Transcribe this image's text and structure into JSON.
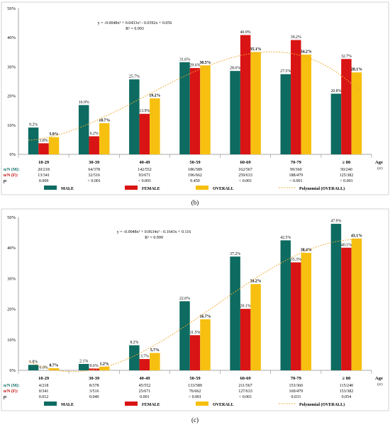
{
  "panels": [
    {
      "caption": "(b)",
      "equation": "y = -0.0048x³ + 0.0433x² - 0.0392x + 0.056",
      "r2": "R² = 0.993",
      "age_label": "Age",
      "age_unit": "(yr)",
      "row_labels": [
        "n/N (M):",
        "n/N (F):",
        "p:"
      ],
      "rows": [
        [
          "20/218",
          "64/378",
          "142/552",
          "186/589",
          "162/567",
          "99/360",
          "50/240"
        ],
        [
          "13/341",
          "32/516",
          "93/671",
          "196/662",
          "259/633",
          "188/479",
          "125/382"
        ],
        [
          "0.009",
          "< 0.001",
          "< 0.001",
          "0.450",
          "< 0.001",
          "< 0.001",
          "< 0.001"
        ]
      ],
      "legend": {
        "male": "MALE",
        "female": "FEMALE",
        "overall": "OVERALL",
        "trend": "Polynomial (OVERALL)"
      }
    },
    {
      "caption": "(c)",
      "equation": "y = -0.0048x³ + 0.0634x² - 0.1643x + 0.116",
      "r2": "R² = 0.999",
      "age_label": "Age",
      "age_unit": "(yr)",
      "row_labels": [
        "n/N (M):",
        "n/N (F):",
        "p:"
      ],
      "rows": [
        [
          "4/218",
          "8/378",
          "45/552",
          "133/589",
          "211/567",
          "153/360",
          "115/240"
        ],
        [
          "0/341",
          "3/516",
          "25/671",
          "76/662",
          "127/633",
          "169/479",
          "153/382"
        ],
        [
          "0.012",
          "0.040",
          "0.001",
          "< 0.001",
          "< 0.001",
          "0.033",
          "0.054"
        ]
      ],
      "legend": {
        "male": "MALE",
        "female": "FEMALE",
        "overall": "OVERALL",
        "trend": "Polynomial (OVERALL)"
      }
    }
  ],
  "colors": {
    "male": "#0d6b61",
    "female": "#d91414",
    "overall": "#f7bf0f",
    "trend": "#f0a830",
    "axis": "#8c8c8c",
    "label_red": "#c00000"
  },
  "chart_data": [
    {
      "type": "bar",
      "categories": [
        "18-29",
        "30-39",
        "40-49",
        "50-59",
        "60-69",
        "70-79",
        "≥ 80"
      ],
      "series": [
        {
          "name": "MALE",
          "values": [
            9.2,
            16.9,
            25.7,
            31.6,
            28.6,
            27.5,
            20.8
          ]
        },
        {
          "name": "FEMALE",
          "values": [
            3.8,
            6.2,
            13.9,
            29.6,
            40.9,
            39.2,
            32.7
          ]
        },
        {
          "name": "OVERALL",
          "values": [
            5.9,
            10.7,
            19.2,
            30.5,
            35.1,
            34.2,
            28.1
          ]
        }
      ],
      "value_labels": [
        [
          "9.2%",
          "16.9%",
          "25.7%",
          "31.6%",
          "28.6%",
          "27.5%",
          "20.8%"
        ],
        [
          "3.8%",
          "6.2%",
          "13.9%",
          "29.6%",
          "40.9%",
          "39.2%",
          "32.7%"
        ],
        [
          "5.9%",
          "10.7%",
          "19.2%",
          "30.5%",
          "35.1%",
          "34.2%",
          "28.1%"
        ]
      ],
      "trendline": {
        "name": "Polynomial (OVERALL)",
        "coefficients": [
          -0.0048,
          0.0433,
          -0.0392,
          0.056
        ]
      },
      "yticks": [
        "0%",
        "10%",
        "20%",
        "30%",
        "40%",
        "50%"
      ],
      "ylim": [
        0,
        50
      ],
      "xlabel": "Age",
      "grid": false,
      "legend": "bottom"
    },
    {
      "type": "bar",
      "categories": [
        "18-29",
        "30-39",
        "40-49",
        "50-59",
        "60-69",
        "70-79",
        "≥ 80"
      ],
      "series": [
        {
          "name": "MALE",
          "values": [
            1.8,
            2.1,
            8.2,
            22.6,
            37.2,
            42.5,
            47.9
          ]
        },
        {
          "name": "FEMALE",
          "values": [
            0.0,
            0.6,
            3.7,
            11.5,
            20.1,
            35.3,
            40.1
          ]
        },
        {
          "name": "OVERALL",
          "values": [
            0.7,
            1.2,
            5.7,
            16.7,
            28.2,
            38.4,
            43.1
          ]
        }
      ],
      "value_labels": [
        [
          "1.8%",
          "2.1%",
          "8.2%",
          "22.6%",
          "37.2%",
          "42.5%",
          "47.9%"
        ],
        [
          "0.0%",
          "0.6%",
          "3.7%",
          "11.5%",
          "20.1%",
          "35.3%",
          "40.1%"
        ],
        [
          "0.7%",
          "1.2%",
          "5.7%",
          "16.7%",
          "28.2%",
          "38.4%",
          "43.1%"
        ]
      ],
      "trendline": {
        "name": "Polynomial (OVERALL)",
        "coefficients": [
          -0.0048,
          0.0634,
          -0.1643,
          0.116
        ]
      },
      "yticks": [
        "0%",
        "10%",
        "20%",
        "30%",
        "40%",
        "50%"
      ],
      "ylim": [
        0,
        50
      ],
      "xlabel": "Age",
      "grid": false,
      "legend": "bottom"
    }
  ]
}
